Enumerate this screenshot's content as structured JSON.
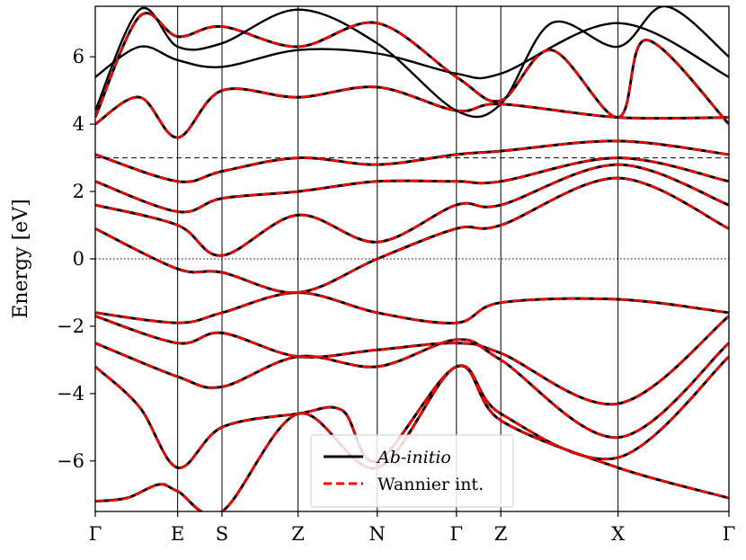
{
  "chart_data": {
    "type": "line",
    "xlabel": "",
    "ylabel": "Energy [eV]",
    "ylim": [
      -7.5,
      7.5
    ],
    "yticks": [
      -6,
      -4,
      -2,
      0,
      2,
      4,
      6
    ],
    "ytick_labels": [
      "−6",
      "−4",
      "−2",
      "0",
      "2",
      "4",
      "6"
    ],
    "kpoints": [
      {
        "label": "Γ",
        "x": 0.0
      },
      {
        "label": "E",
        "x": 0.13
      },
      {
        "label": "S",
        "x": 0.2
      },
      {
        "label": "Z",
        "x": 0.32
      },
      {
        "label": "N",
        "x": 0.445
      },
      {
        "label": "Γ",
        "x": 0.57
      },
      {
        "label": "Z",
        "x": 0.64
      },
      {
        "label": "X",
        "x": 0.825
      },
      {
        "label": "Γ",
        "x": 1.0
      }
    ],
    "reference_lines": [
      {
        "y": 0,
        "style": "dotted"
      },
      {
        "y": 3,
        "style": "dashed"
      }
    ],
    "legend": {
      "placement": "lower-center",
      "entries": [
        {
          "label": "Ab-initio",
          "color": "#000000",
          "style": "solid"
        },
        {
          "label": "Wannier int.",
          "color": "#ff0000",
          "style": "dashed"
        }
      ]
    },
    "series": [
      {
        "kind": "wannier",
        "points": [
          [
            0,
            -7.2
          ],
          [
            0.05,
            -7.1
          ],
          [
            0.1,
            -6.7
          ],
          [
            0.13,
            -6.9
          ],
          [
            0.2,
            -7.5
          ],
          [
            0.32,
            -4.6
          ],
          [
            0.445,
            -6.2
          ],
          [
            0.57,
            -3.2
          ],
          [
            0.64,
            -4.8
          ],
          [
            0.825,
            -6.2
          ],
          [
            1.0,
            -7.1
          ]
        ]
      },
      {
        "kind": "wannier",
        "points": [
          [
            0,
            -3.2
          ],
          [
            0.07,
            -4.4
          ],
          [
            0.13,
            -6.2
          ],
          [
            0.2,
            -5.0
          ],
          [
            0.32,
            -4.6
          ],
          [
            0.39,
            -4.5
          ],
          [
            0.445,
            -6.0
          ],
          [
            0.57,
            -3.2
          ],
          [
            0.64,
            -4.6
          ],
          [
            0.825,
            -5.9
          ],
          [
            1.0,
            -2.9
          ]
        ]
      },
      {
        "kind": "wannier",
        "points": [
          [
            0,
            -2.5
          ],
          [
            0.13,
            -3.5
          ],
          [
            0.2,
            -3.8
          ],
          [
            0.32,
            -2.9
          ],
          [
            0.445,
            -3.2
          ],
          [
            0.57,
            -2.4
          ],
          [
            0.64,
            -3.0
          ],
          [
            0.825,
            -5.3
          ],
          [
            1.0,
            -2.5
          ]
        ]
      },
      {
        "kind": "wannier",
        "points": [
          [
            0,
            -1.7
          ],
          [
            0.13,
            -2.5
          ],
          [
            0.2,
            -2.2
          ],
          [
            0.32,
            -2.9
          ],
          [
            0.445,
            -2.7
          ],
          [
            0.57,
            -2.5
          ],
          [
            0.64,
            -2.8
          ],
          [
            0.825,
            -4.3
          ],
          [
            1.0,
            -1.7
          ]
        ]
      },
      {
        "kind": "wannier",
        "points": [
          [
            0,
            -1.6
          ],
          [
            0.13,
            -1.9
          ],
          [
            0.2,
            -1.6
          ],
          [
            0.32,
            -1.0
          ],
          [
            0.445,
            -1.6
          ],
          [
            0.57,
            -1.9
          ],
          [
            0.64,
            -1.3
          ],
          [
            0.825,
            -1.2
          ],
          [
            1.0,
            -1.6
          ]
        ]
      },
      {
        "kind": "wannier",
        "points": [
          [
            0,
            0.9
          ],
          [
            0.13,
            -0.3
          ],
          [
            0.2,
            -0.4
          ],
          [
            0.32,
            -1.0
          ],
          [
            0.445,
            0.0
          ],
          [
            0.57,
            0.9
          ],
          [
            0.64,
            1.0
          ],
          [
            0.825,
            2.4
          ],
          [
            1.0,
            0.9
          ]
        ]
      },
      {
        "kind": "wannier",
        "points": [
          [
            0,
            1.6
          ],
          [
            0.13,
            1.0
          ],
          [
            0.2,
            0.1
          ],
          [
            0.32,
            1.3
          ],
          [
            0.445,
            0.5
          ],
          [
            0.57,
            1.6
          ],
          [
            0.64,
            1.6
          ],
          [
            0.825,
            2.8
          ],
          [
            1.0,
            1.6
          ]
        ]
      },
      {
        "kind": "wannier",
        "points": [
          [
            0,
            2.3
          ],
          [
            0.13,
            1.4
          ],
          [
            0.2,
            1.8
          ],
          [
            0.32,
            2.0
          ],
          [
            0.445,
            2.3
          ],
          [
            0.57,
            2.3
          ],
          [
            0.64,
            2.3
          ],
          [
            0.825,
            3.0
          ],
          [
            1.0,
            2.3
          ]
        ]
      },
      {
        "kind": "wannier",
        "points": [
          [
            0,
            3.1
          ],
          [
            0.13,
            2.3
          ],
          [
            0.2,
            2.6
          ],
          [
            0.32,
            3.0
          ],
          [
            0.445,
            2.8
          ],
          [
            0.57,
            3.1
          ],
          [
            0.64,
            3.2
          ],
          [
            0.825,
            3.5
          ],
          [
            1.0,
            3.1
          ]
        ]
      },
      {
        "kind": "wannier",
        "points": [
          [
            0,
            4.0
          ],
          [
            0.07,
            4.8
          ],
          [
            0.13,
            3.6
          ],
          [
            0.2,
            5.0
          ],
          [
            0.32,
            4.8
          ],
          [
            0.445,
            5.1
          ],
          [
            0.57,
            4.4
          ],
          [
            0.64,
            4.6
          ],
          [
            0.825,
            4.2
          ],
          [
            1.0,
            4.2
          ]
        ]
      },
      {
        "kind": "wannier",
        "points": [
          [
            0,
            4.2
          ],
          [
            0.07,
            7.2
          ],
          [
            0.13,
            6.6
          ],
          [
            0.2,
            6.9
          ],
          [
            0.32,
            6.3
          ],
          [
            0.445,
            7.0
          ],
          [
            0.57,
            5.4
          ],
          [
            0.64,
            4.7
          ],
          [
            0.72,
            6.2
          ],
          [
            0.825,
            4.2
          ],
          [
            0.87,
            6.5
          ],
          [
            1.0,
            4.0
          ]
        ]
      },
      {
        "kind": "abinitio",
        "points": [
          [
            0,
            5.4
          ],
          [
            0.07,
            6.3
          ],
          [
            0.13,
            5.9
          ],
          [
            0.2,
            5.7
          ],
          [
            0.32,
            6.2
          ],
          [
            0.445,
            6.1
          ],
          [
            0.57,
            5.5
          ],
          [
            0.64,
            5.5
          ],
          [
            0.825,
            7.0
          ],
          [
            1.0,
            5.4
          ]
        ]
      },
      {
        "kind": "abinitio",
        "points": [
          [
            0,
            4.4
          ],
          [
            0.07,
            7.4
          ],
          [
            0.13,
            6.3
          ],
          [
            0.2,
            6.4
          ],
          [
            0.32,
            7.4
          ],
          [
            0.445,
            6.4
          ],
          [
            0.57,
            4.4
          ],
          [
            0.64,
            4.6
          ],
          [
            0.72,
            7.0
          ],
          [
            0.825,
            6.3
          ],
          [
            0.9,
            7.5
          ],
          [
            1.0,
            6.0
          ]
        ]
      }
    ]
  }
}
